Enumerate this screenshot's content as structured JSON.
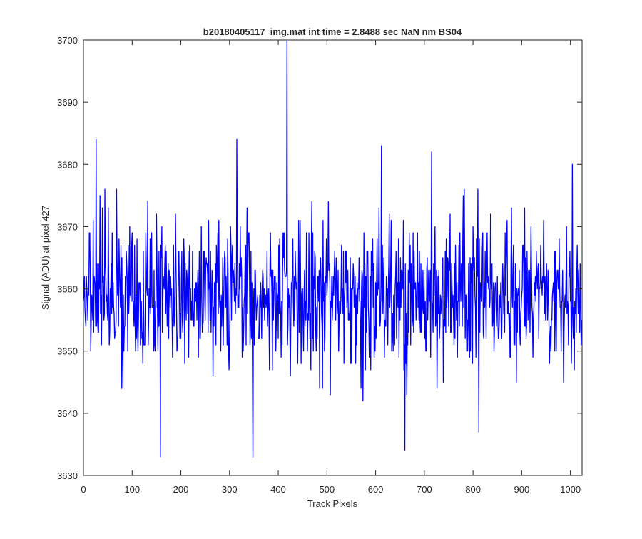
{
  "chart_data": {
    "type": "line",
    "title": "b20180405117_img.mat int time = 2.8488 sec  NaN nm BS04",
    "xlabel": "Track Pixels",
    "ylabel": "Signal (ADU) at pixel 427",
    "xlim": [
      0,
      1024
    ],
    "ylim": [
      3630,
      3700
    ],
    "xticks": [
      0,
      100,
      200,
      300,
      400,
      500,
      600,
      700,
      800,
      900,
      1000
    ],
    "yticks": [
      3630,
      3640,
      3650,
      3660,
      3670,
      3680,
      3690,
      3700
    ],
    "grid": false,
    "line_color": "#0000ff",
    "series": [
      {
        "n_points": 1024,
        "mean": 3659,
        "std_approx": 6,
        "notable_points": [
          {
            "x": 26,
            "y": 3684
          },
          {
            "x": 158,
            "y": 3633
          },
          {
            "x": 315,
            "y": 3684
          },
          {
            "x": 348,
            "y": 3633
          },
          {
            "x": 418,
            "y": 3700
          },
          {
            "x": 612,
            "y": 3683
          },
          {
            "x": 660,
            "y": 3634
          },
          {
            "x": 812,
            "y": 3637
          },
          {
            "x": 1004,
            "y": 3680
          }
        ]
      }
    ]
  }
}
